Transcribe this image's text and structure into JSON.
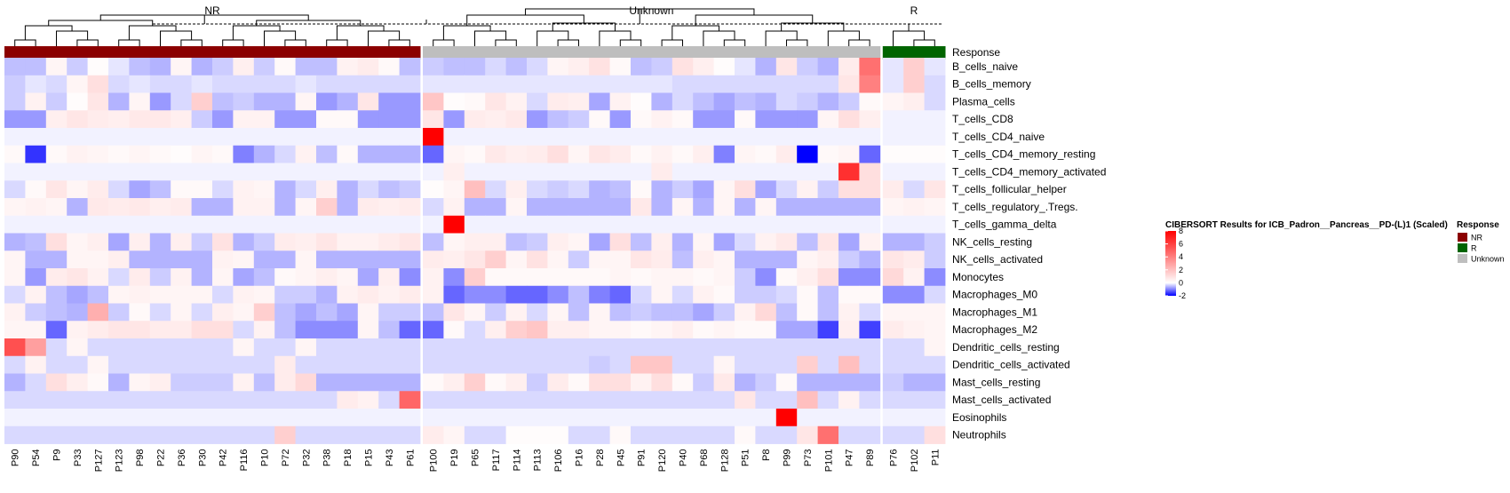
{
  "chart_data": {
    "type": "heatmap",
    "title": "CIBERSORT Results for ICB_Padron__Pancreas__PD-(L)1 (Scaled)",
    "groups": [
      {
        "name": "NR",
        "color": "#8B0000",
        "columns": [
          "P90",
          "P54",
          "P9",
          "P33",
          "P127",
          "P123",
          "P98",
          "P22",
          "P36",
          "P30",
          "P42",
          "P116",
          "P10",
          "P72",
          "P32",
          "P38",
          "P18",
          "P15",
          "P43",
          "P61"
        ]
      },
      {
        "name": "Unknown",
        "color": "#BEBEBE",
        "columns": [
          "P100",
          "P19",
          "P65",
          "P117",
          "P114",
          "P113",
          "P106",
          "P16",
          "P28",
          "P45",
          "P91",
          "P120",
          "P40",
          "P68",
          "P128",
          "P51",
          "P8",
          "P99",
          "P73",
          "P101",
          "P47",
          "P89"
        ]
      },
      {
        "name": "R",
        "color": "#006400",
        "columns": [
          "P76",
          "P102",
          "P11"
        ]
      }
    ],
    "annotation_label": "Response",
    "rows": [
      "B_cells_naive",
      "B_cells_memory",
      "Plasma_cells",
      "T_cells_CD8",
      "T_cells_CD4_naive",
      "T_cells_CD4_memory_resting",
      "T_cells_CD4_memory_activated",
      "T_cells_follicular_helper",
      "T_cells_regulatory_.Tregs.",
      "T_cells_gamma_delta",
      "NK_cells_resting",
      "NK_cells_activated",
      "Monocytes",
      "Macrophages_M0",
      "Macrophages_M1",
      "Macrophages_M2",
      "Dendritic_cells_resting",
      "Dendritic_cells_activated",
      "Mast_cells_resting",
      "Mast_cells_activated",
      "Eosinophils",
      "Neutrophils"
    ],
    "values": [
      [
        -0.5,
        -0.5,
        0.3,
        -0.4,
        0.1,
        -0.2,
        -0.5,
        -0.6,
        0.3,
        -0.6,
        -0.4,
        0.5,
        -0.4,
        0.2,
        -0.5,
        -0.5,
        0.4,
        0.6,
        0.2,
        -0.5,
        -0.4,
        -0.5,
        -0.5,
        -0.3,
        -0.5,
        -0.3,
        0.3,
        0.5,
        0.9,
        0.2,
        -0.5,
        -0.4,
        0.9,
        0.5,
        0.1,
        -0.2,
        -0.6,
        0.8,
        -0.4,
        -0.6,
        0.6,
        4.5,
        -0.2,
        1.5,
        -0.2
      ],
      [
        -0.4,
        -0.2,
        -0.3,
        0.3,
        1.0,
        -0.3,
        -0.2,
        -0.3,
        -0.3,
        -0.2,
        -0.3,
        -0.3,
        -0.3,
        -0.3,
        -0.2,
        -0.3,
        -0.3,
        -0.3,
        -0.3,
        -0.3,
        -0.2,
        -0.2,
        -0.2,
        -0.2,
        -0.2,
        -0.2,
        -0.2,
        -0.2,
        -0.2,
        -0.2,
        -0.2,
        -0.2,
        -0.3,
        -0.3,
        -0.3,
        -0.3,
        -0.3,
        -0.3,
        -0.3,
        -0.3,
        0.8,
        4.0,
        -0.2,
        1.5,
        -0.3
      ],
      [
        -0.4,
        0.4,
        -0.4,
        0.1,
        0.8,
        -0.6,
        0.3,
        -0.8,
        -0.3,
        1.5,
        -0.5,
        -0.4,
        -0.6,
        -0.6,
        0.3,
        -0.8,
        -0.6,
        0.8,
        -0.8,
        -0.8,
        1.8,
        0.1,
        0.2,
        0.8,
        0.4,
        -0.3,
        0.6,
        0.5,
        -0.7,
        0.4,
        0.1,
        -0.6,
        -0.3,
        -0.5,
        -0.7,
        -0.5,
        -0.6,
        -0.3,
        -0.4,
        -0.6,
        -0.4,
        0.2,
        0.3,
        0.5,
        -0.3
      ],
      [
        -0.8,
        -0.8,
        0.5,
        0.8,
        0.6,
        0.5,
        0.7,
        0.7,
        0.5,
        -0.4,
        -0.8,
        0.4,
        0.4,
        -0.8,
        -0.8,
        0.2,
        0.2,
        -0.8,
        -0.8,
        -0.8,
        0.8,
        -0.8,
        0.6,
        0.5,
        0.7,
        -0.8,
        -0.5,
        -0.4,
        0.2,
        -0.8,
        0.2,
        0.4,
        0.2,
        -0.8,
        -0.8,
        0.2,
        -0.8,
        -0.8,
        -0.8,
        0.3,
        1.0,
        0.5,
        -0.1,
        -0.1,
        -0.1
      ],
      [
        -0.1,
        -0.1,
        -0.1,
        -0.1,
        -0.1,
        -0.1,
        -0.1,
        -0.1,
        -0.1,
        -0.1,
        -0.1,
        -0.1,
        -0.1,
        -0.1,
        -0.1,
        -0.1,
        -0.1,
        -0.1,
        -0.1,
        -0.1,
        8.0,
        -0.1,
        -0.1,
        -0.1,
        -0.1,
        -0.1,
        -0.1,
        -0.1,
        -0.1,
        -0.1,
        -0.1,
        -0.1,
        -0.1,
        -0.1,
        -0.1,
        -0.1,
        -0.1,
        -0.1,
        -0.1,
        -0.1,
        -0.1,
        -0.1,
        -0.1,
        -0.1,
        -0.1
      ],
      [
        0.2,
        -1.6,
        0.2,
        0.4,
        0.3,
        0.2,
        0.3,
        0.2,
        0.1,
        0.3,
        0.2,
        -1.0,
        -0.6,
        -0.3,
        0.4,
        -0.5,
        0.2,
        -0.6,
        -0.6,
        -0.6,
        -1.2,
        0.3,
        0.2,
        0.7,
        0.5,
        0.6,
        1.0,
        0.3,
        0.8,
        0.6,
        0.2,
        0.4,
        0.2,
        0.5,
        -1.0,
        0.3,
        0.2,
        0.6,
        -2.0,
        0.2,
        0.3,
        -1.2,
        0.1,
        0.1,
        0.1
      ],
      [
        -0.1,
        -0.1,
        -0.1,
        -0.1,
        -0.1,
        -0.1,
        -0.1,
        -0.1,
        -0.1,
        -0.1,
        -0.1,
        -0.1,
        -0.1,
        -0.1,
        -0.1,
        -0.1,
        -0.1,
        -0.1,
        -0.1,
        -0.1,
        -0.1,
        0.5,
        -0.1,
        -0.1,
        -0.1,
        -0.1,
        -0.1,
        -0.1,
        -0.1,
        -0.1,
        -0.1,
        0.6,
        -0.1,
        -0.1,
        -0.1,
        -0.1,
        -0.1,
        -0.1,
        -0.1,
        -0.1,
        6.5,
        1.0,
        -0.1,
        -0.1,
        -0.1
      ],
      [
        -0.3,
        0.2,
        0.8,
        0.3,
        0.6,
        -0.3,
        -0.7,
        -0.5,
        0.2,
        0.2,
        -0.3,
        0.4,
        0.3,
        -0.6,
        -0.3,
        0.5,
        -0.6,
        -0.3,
        -0.5,
        -0.4,
        0.1,
        0.3,
        2.0,
        -0.3,
        0.5,
        -0.3,
        -0.4,
        -0.3,
        -0.6,
        -0.5,
        0.2,
        -0.6,
        -0.4,
        -0.7,
        0.3,
        1.0,
        -0.7,
        -0.3,
        0.4,
        -0.4,
        1.0,
        1.0,
        0.6,
        -0.3,
        0.8
      ],
      [
        0.3,
        0.4,
        0.3,
        -0.6,
        0.7,
        0.6,
        0.7,
        0.5,
        0.6,
        -0.6,
        -0.6,
        0.4,
        0.4,
        -0.6,
        0.3,
        1.5,
        -0.6,
        0.6,
        0.5,
        0.6,
        -0.3,
        0.4,
        -0.6,
        -0.6,
        0.3,
        -0.6,
        -0.6,
        -0.6,
        -0.6,
        -0.6,
        0.7,
        -0.6,
        0.3,
        -0.6,
        0.3,
        -0.6,
        0.3,
        -0.6,
        -0.6,
        -0.6,
        -0.6,
        -0.6,
        0.3,
        0.4,
        0.3
      ],
      [
        -0.1,
        -0.1,
        -0.1,
        -0.1,
        -0.1,
        -0.1,
        -0.1,
        -0.1,
        -0.1,
        -0.1,
        -0.1,
        -0.1,
        -0.1,
        -0.1,
        -0.1,
        -0.1,
        -0.1,
        -0.1,
        -0.1,
        -0.1,
        -0.1,
        8.0,
        -0.1,
        -0.1,
        -0.1,
        -0.1,
        -0.1,
        -0.1,
        -0.1,
        -0.1,
        -0.1,
        -0.1,
        -0.1,
        -0.1,
        -0.1,
        -0.1,
        -0.1,
        -0.1,
        -0.1,
        -0.1,
        -0.1,
        -0.1,
        -0.1,
        -0.1,
        -0.1
      ],
      [
        -0.6,
        -0.5,
        1.0,
        0.3,
        0.5,
        -0.7,
        0.5,
        -0.6,
        0.5,
        -0.4,
        0.9,
        -0.6,
        -0.4,
        0.6,
        0.5,
        0.8,
        0.4,
        0.4,
        0.6,
        0.8,
        -0.5,
        0.3,
        0.5,
        0.5,
        -0.5,
        -0.4,
        0.5,
        0.3,
        -0.7,
        1.0,
        -0.5,
        0.5,
        -0.6,
        0.3,
        -0.7,
        -0.3,
        0.4,
        0.7,
        -0.5,
        0.8,
        -0.7,
        0.4,
        -0.6,
        -0.6,
        -0.4
      ],
      [
        0.3,
        -0.6,
        -0.6,
        0.3,
        0.3,
        0.5,
        -0.6,
        -0.6,
        -0.6,
        -0.6,
        0.4,
        0.3,
        -0.6,
        -0.6,
        0.3,
        -0.6,
        -0.6,
        -0.6,
        -0.6,
        -0.6,
        0.6,
        0.5,
        0.8,
        1.5,
        0.3,
        0.9,
        0.3,
        -0.4,
        0.3,
        0.3,
        0.8,
        0.6,
        -0.5,
        0.5,
        0.3,
        -0.6,
        -0.6,
        -0.6,
        0.3,
        0.5,
        -0.4,
        -0.6,
        0.8,
        0.6,
        -0.4
      ],
      [
        0.3,
        -0.8,
        0.6,
        0.8,
        0.4,
        -0.3,
        0.6,
        -0.4,
        0.4,
        -0.6,
        0.3,
        -0.7,
        -0.5,
        0.2,
        0.3,
        0.5,
        0.3,
        -0.7,
        0.5,
        -0.9,
        0.4,
        -0.9,
        1.5,
        0.2,
        0.2,
        0.2,
        0.2,
        0.2,
        0.2,
        0.3,
        0.2,
        0.3,
        0.3,
        0.2,
        0.3,
        -0.4,
        -0.9,
        0.2,
        0.5,
        1.0,
        -0.9,
        -0.9,
        1.2,
        0.4,
        -0.9
      ],
      [
        -0.3,
        0.4,
        -0.5,
        -0.7,
        -0.5,
        0.3,
        0.4,
        0.3,
        0.3,
        0.3,
        -0.3,
        0.4,
        0.3,
        -0.4,
        -0.4,
        -0.6,
        0.4,
        0.6,
        0.4,
        0.6,
        0.4,
        -1.2,
        -0.9,
        -0.9,
        -1.2,
        -1.2,
        -0.9,
        -0.5,
        -1.0,
        -1.2,
        -0.3,
        0.3,
        -0.3,
        0.4,
        0.2,
        -0.4,
        -0.4,
        -0.3,
        0.2,
        -0.5,
        0.2,
        0.2,
        -0.9,
        -0.9,
        -0.3
      ],
      [
        0.4,
        -0.4,
        -0.5,
        -0.6,
        2.5,
        -0.4,
        0.2,
        -0.3,
        0.3,
        -0.3,
        0.5,
        0.3,
        1.5,
        -0.5,
        -0.7,
        -0.5,
        -0.7,
        0.3,
        -0.4,
        -0.4,
        -0.5,
        0.8,
        0.3,
        -0.4,
        0.4,
        -0.3,
        0.3,
        -0.5,
        0.3,
        -0.5,
        -0.4,
        -0.5,
        -0.5,
        -0.7,
        -0.4,
        0.4,
        1.2,
        -0.5,
        0.2,
        -0.5,
        0.4,
        -0.3,
        0.3,
        0.3,
        0.3
      ],
      [
        0.3,
        0.3,
        -1.2,
        0.4,
        0.6,
        0.8,
        0.8,
        0.6,
        0.6,
        1.0,
        1.0,
        -0.3,
        0.4,
        -0.5,
        -0.9,
        -0.9,
        -0.9,
        0.3,
        -0.5,
        -1.2,
        -1.2,
        0.2,
        -0.3,
        0.5,
        1.5,
        1.8,
        0.5,
        0.5,
        0.3,
        0.3,
        0.2,
        0.3,
        0.5,
        0.2,
        0.3,
        0.2,
        0.2,
        -0.7,
        -0.7,
        -1.5,
        0.5,
        -1.5,
        0.6,
        0.4,
        0.3
      ],
      [
        5.5,
        3.0,
        -0.3,
        0.3,
        -0.3,
        -0.3,
        -0.3,
        -0.3,
        -0.3,
        -0.3,
        -0.3,
        0.3,
        -0.3,
        -0.3,
        0.3,
        -0.3,
        -0.3,
        -0.3,
        -0.3,
        -0.3,
        -0.3,
        -0.3,
        -0.3,
        -0.3,
        -0.3,
        -0.3,
        -0.3,
        -0.3,
        -0.3,
        -0.3,
        -0.3,
        -0.3,
        -0.3,
        -0.3,
        -0.3,
        -0.3,
        -0.3,
        -0.3,
        -0.3,
        -0.3,
        -0.3,
        -0.3,
        -0.3,
        -0.3,
        0.3
      ],
      [
        -0.3,
        0.4,
        -0.3,
        -0.3,
        0.3,
        -0.3,
        -0.3,
        -0.3,
        -0.3,
        -0.3,
        -0.3,
        -0.3,
        -0.3,
        0.6,
        -0.3,
        -0.3,
        -0.3,
        -0.3,
        -0.3,
        -0.3,
        -0.3,
        -0.3,
        -0.3,
        -0.3,
        -0.3,
        -0.3,
        -0.3,
        -0.3,
        -0.4,
        -0.3,
        1.8,
        1.8,
        -0.3,
        -0.3,
        0.3,
        -0.3,
        -0.3,
        -0.3,
        1.5,
        -0.3,
        2.0,
        -0.3,
        -0.3,
        -0.3,
        -0.3
      ],
      [
        -0.6,
        -0.3,
        1.0,
        0.5,
        0.2,
        -0.6,
        0.3,
        0.5,
        -0.4,
        -0.4,
        -0.4,
        0.4,
        -0.5,
        0.6,
        1.2,
        -0.6,
        -0.6,
        -0.6,
        -0.6,
        -0.6,
        0.2,
        0.5,
        1.5,
        0.2,
        0.5,
        -0.4,
        0.6,
        0.2,
        1.0,
        1.0,
        0.4,
        1.0,
        0.2,
        -0.4,
        0.7,
        -0.6,
        -0.4,
        0.2,
        -0.6,
        -0.6,
        -0.6,
        -0.6,
        -0.4,
        -0.6,
        -0.6
      ],
      [
        -0.3,
        -0.3,
        -0.3,
        -0.3,
        -0.3,
        -0.3,
        -0.3,
        -0.3,
        -0.3,
        -0.3,
        -0.3,
        -0.3,
        -0.3,
        -0.3,
        -0.3,
        -0.3,
        0.6,
        0.4,
        -0.3,
        4.8,
        -0.3,
        -0.3,
        -0.3,
        -0.3,
        -0.3,
        -0.3,
        -0.3,
        -0.3,
        -0.3,
        -0.3,
        -0.3,
        -0.3,
        -0.3,
        -0.3,
        -0.3,
        0.8,
        -0.3,
        -0.3,
        2.0,
        -0.3,
        0.4,
        -0.3,
        -0.3,
        -0.3,
        -0.3
      ],
      [
        -0.1,
        -0.1,
        -0.1,
        -0.1,
        -0.1,
        -0.1,
        -0.1,
        -0.1,
        -0.1,
        -0.1,
        -0.1,
        -0.1,
        -0.1,
        -0.1,
        -0.1,
        -0.1,
        -0.1,
        -0.1,
        -0.1,
        -0.1,
        -0.1,
        -0.1,
        -0.1,
        -0.1,
        -0.1,
        -0.1,
        -0.1,
        -0.1,
        -0.1,
        -0.1,
        -0.1,
        -0.1,
        -0.1,
        -0.1,
        -0.1,
        -0.1,
        -0.1,
        8.0,
        -0.1,
        -0.1,
        -0.1,
        -0.1,
        -0.1,
        -0.1,
        -0.1
      ],
      [
        -0.3,
        -0.3,
        -0.3,
        -0.3,
        -0.3,
        -0.3,
        -0.3,
        -0.3,
        -0.3,
        -0.3,
        -0.3,
        -0.3,
        -0.3,
        1.5,
        -0.3,
        -0.3,
        -0.3,
        -0.3,
        -0.3,
        -0.3,
        0.6,
        0.3,
        -0.3,
        -0.3,
        0.1,
        0.1,
        0.1,
        -0.3,
        -0.3,
        0.2,
        -0.3,
        -0.3,
        -0.3,
        -0.3,
        -0.3,
        0.2,
        -0.3,
        -0.3,
        0.8,
        4.5,
        -0.3,
        -0.3,
        -0.3,
        -0.3,
        1.0
      ]
    ],
    "color_scale": {
      "min": -2,
      "max": 8,
      "low_color": "#0000FF",
      "mid_color": "#FFFFFF",
      "high_color": "#FF0000",
      "ticks": [
        8,
        6,
        4,
        2,
        0,
        -2
      ]
    },
    "legend": {
      "title": "Response",
      "entries": [
        {
          "label": "NR",
          "color": "#8B0000"
        },
        {
          "label": "R",
          "color": "#006400"
        },
        {
          "label": "Unknown",
          "color": "#BEBEBE"
        }
      ]
    },
    "column_dendrogram": true
  }
}
